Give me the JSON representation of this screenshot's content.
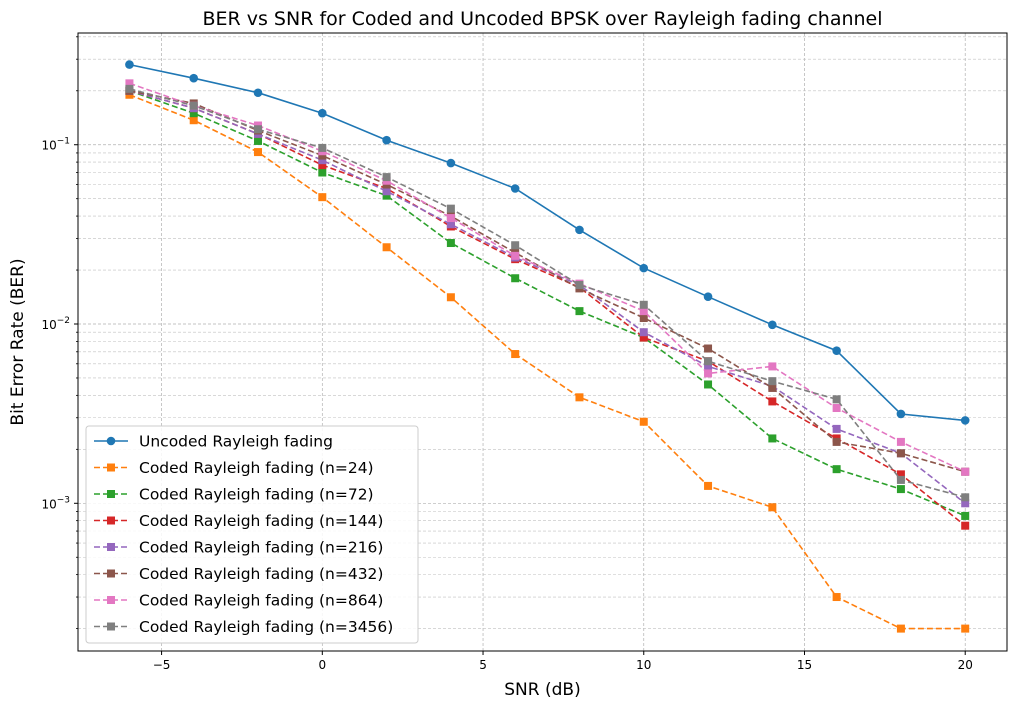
{
  "chart_data": {
    "type": "line",
    "title": "BER vs SNR for Coded and Uncoded BPSK over Rayleigh fading channel",
    "xlabel": "SNR (dB)",
    "ylabel": "Bit Error Rate (BER)",
    "xlim": [
      -7.6,
      21.3
    ],
    "ylim": [
      0.00015,
      0.42
    ],
    "yscale": "log",
    "grid": true,
    "legend_position": "lower-left",
    "x_ticks": [
      -5,
      0,
      5,
      10,
      15,
      20
    ],
    "x_tick_labels": [
      "−5",
      "0",
      "5",
      "10",
      "15",
      "20"
    ],
    "y_ticks": [
      0.001,
      0.01,
      0.1
    ],
    "y_tick_labels": [
      "10^-3",
      "10^-2",
      "10^-1"
    ],
    "x": [
      -6,
      -4,
      -2,
      0,
      2,
      4,
      6,
      8,
      10,
      12,
      14,
      16,
      18,
      20
    ],
    "series": [
      {
        "name": "Uncoded Rayleigh fading",
        "color": "#1f77b4",
        "marker": "circle",
        "dash": "solid",
        "values": [
          0.28,
          0.235,
          0.195,
          0.15,
          0.106,
          0.079,
          0.057,
          0.0335,
          0.0205,
          0.0142,
          0.0099,
          0.0071,
          0.00315,
          0.0029
        ]
      },
      {
        "name": "Coded Rayleigh fading (n=24)",
        "color": "#ff7f0e",
        "marker": "square",
        "dash": "dashed",
        "values": [
          0.19,
          0.137,
          0.091,
          0.051,
          0.0268,
          0.0141,
          0.0068,
          0.0039,
          0.00285,
          0.00125,
          0.00095,
          0.0003,
          0.0002,
          0.0002
        ]
      },
      {
        "name": "Coded Rayleigh fading (n=72)",
        "color": "#2ca02c",
        "marker": "square",
        "dash": "dashed",
        "values": [
          0.2,
          0.15,
          0.105,
          0.07,
          0.052,
          0.0283,
          0.018,
          0.0118,
          0.0084,
          0.0046,
          0.0023,
          0.00155,
          0.0012,
          0.00085
        ]
      },
      {
        "name": "Coded Rayleigh fading (n=144)",
        "color": "#d62728",
        "marker": "square",
        "dash": "dashed",
        "values": [
          0.2,
          0.16,
          0.115,
          0.077,
          0.057,
          0.035,
          0.023,
          0.016,
          0.0084,
          0.0062,
          0.0037,
          0.0023,
          0.00145,
          0.00075
        ]
      },
      {
        "name": "Coded Rayleigh fading (n=216)",
        "color": "#9467bd",
        "marker": "square",
        "dash": "dashed",
        "values": [
          0.2,
          0.16,
          0.115,
          0.082,
          0.055,
          0.036,
          0.0235,
          0.0165,
          0.009,
          0.0058,
          0.0045,
          0.0026,
          0.0019,
          0.001
        ]
      },
      {
        "name": "Coded Rayleigh fading (n=432)",
        "color": "#8c564b",
        "marker": "square",
        "dash": "dashed",
        "values": [
          0.2,
          0.17,
          0.12,
          0.087,
          0.06,
          0.04,
          0.025,
          0.0158,
          0.0108,
          0.0073,
          0.0044,
          0.0022,
          0.0019,
          0.0015
        ]
      },
      {
        "name": "Coded Rayleigh fading (n=864)",
        "color": "#e377c2",
        "marker": "square",
        "dash": "dashed",
        "values": [
          0.22,
          0.165,
          0.128,
          0.092,
          0.063,
          0.039,
          0.024,
          0.0168,
          0.0118,
          0.0053,
          0.0058,
          0.0034,
          0.0022,
          0.0015
        ]
      },
      {
        "name": "Coded Rayleigh fading (n=3456)",
        "color": "#7f7f7f",
        "marker": "square",
        "dash": "dashed",
        "values": [
          0.205,
          0.165,
          0.122,
          0.096,
          0.066,
          0.044,
          0.0275,
          0.0165,
          0.0128,
          0.0062,
          0.0048,
          0.0038,
          0.00135,
          0.00108
        ]
      }
    ]
  }
}
